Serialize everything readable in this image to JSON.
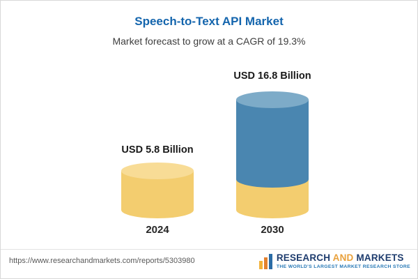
{
  "header": {
    "title": "Speech-to-Text API Market",
    "subtitle": "Market forecast to grow at a CAGR of 19.3%"
  },
  "chart_data": {
    "type": "bar",
    "subtype": "3d-cylinder",
    "title": "Speech-to-Text API Market",
    "subtitle": "Market forecast to grow at a CAGR of 19.3%",
    "categories": [
      "2024",
      "2030"
    ],
    "values": [
      5.8,
      16.8
    ],
    "unit": "USD Billion",
    "value_labels": [
      "USD 5.8 Billion",
      "USD 16.8 Billion"
    ],
    "cagr_percent": 19.3,
    "legend": "none",
    "gridlines": false,
    "bar_colors": {
      "bar_2024": "#f3cd6f",
      "bar_2030_top": "#4a86b0",
      "bar_2030_base": "#f3cd6f"
    }
  },
  "footer": {
    "url": "https://www.researchandmarkets.com/reports/5303980",
    "logo": {
      "word1": "RESEARCH",
      "word2": "AND",
      "word3": "MARKETS",
      "tagline": "THE WORLD'S LARGEST MARKET RESEARCH STORE"
    }
  },
  "colors": {
    "title_blue": "#1465ad",
    "cylinder_yellow": "#f3cd6f",
    "cylinder_yellow_cap": "#f8dc96",
    "cylinder_blue": "#4a86b0",
    "cylinder_blue_cap": "#7dabc8",
    "logo_navy": "#1e3c6e",
    "logo_gold": "#e9a13b",
    "tagline_blue": "#2577b5"
  }
}
